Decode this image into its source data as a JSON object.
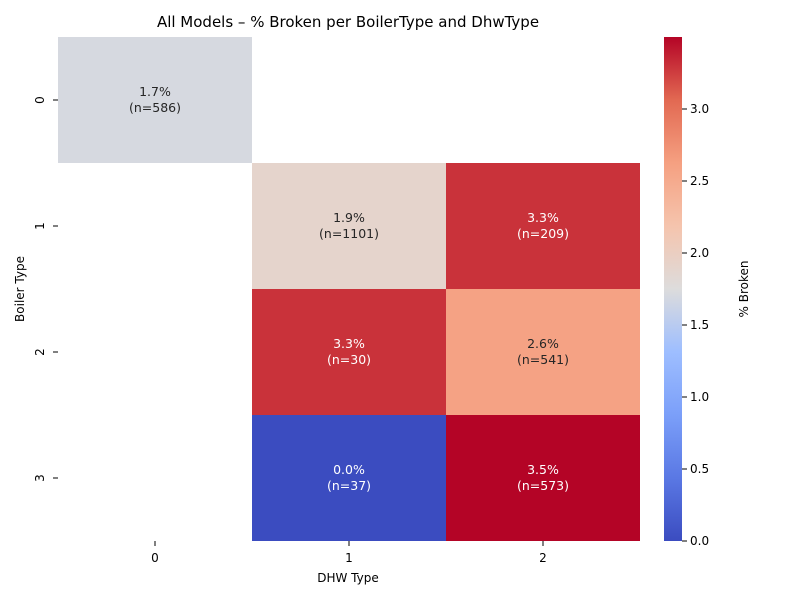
{
  "chart_data": {
    "type": "heatmap",
    "title": "All Models – % Broken per BoilerType and DhwType",
    "xlabel": "DHW Type",
    "ylabel": "Boiler Type",
    "x_categories": [
      "0",
      "1",
      "2"
    ],
    "y_categories": [
      "0",
      "1",
      "2",
      "3"
    ],
    "cells": [
      {
        "boiler": "0",
        "dhw": "0",
        "value": 1.7,
        "n": 586,
        "label": "1.7%",
        "n_label": "(n=586)"
      },
      {
        "boiler": "1",
        "dhw": "1",
        "value": 1.9,
        "n": 1101,
        "label": "1.9%",
        "n_label": "(n=1101)"
      },
      {
        "boiler": "1",
        "dhw": "2",
        "value": 3.3,
        "n": 209,
        "label": "3.3%",
        "n_label": "(n=209)"
      },
      {
        "boiler": "2",
        "dhw": "1",
        "value": 3.3,
        "n": 30,
        "label": "3.3%",
        "n_label": "(n=30)"
      },
      {
        "boiler": "2",
        "dhw": "2",
        "value": 2.6,
        "n": 541,
        "label": "2.6%",
        "n_label": "(n=541)"
      },
      {
        "boiler": "3",
        "dhw": "1",
        "value": 0.0,
        "n": 37,
        "label": "0.0%",
        "n_label": "(n=37)"
      },
      {
        "boiler": "3",
        "dhw": "2",
        "value": 3.5,
        "n": 573,
        "label": "3.5%",
        "n_label": "(n=573)"
      }
    ],
    "colorbar": {
      "label": "% Broken",
      "min": 0.0,
      "max": 3.5,
      "ticks": [
        "0.0",
        "0.5",
        "1.0",
        "1.5",
        "2.0",
        "2.5",
        "3.0"
      ],
      "colormap": "coolwarm"
    },
    "legend": "colorbar-right",
    "grid": false
  }
}
